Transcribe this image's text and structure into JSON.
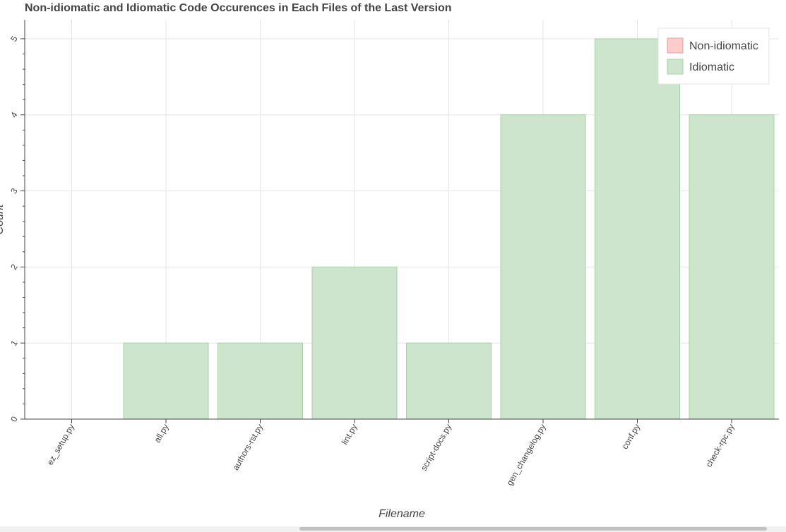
{
  "chart_data": {
    "type": "bar",
    "title": "Non-idiomatic and Idiomatic Code Occurences in Each Files of the Last Version",
    "xlabel": "Filename",
    "ylabel": "Count",
    "categories": [
      "ez_setup.py",
      "all.py",
      "authors-rst.py",
      "lint.py",
      "script-docs.py",
      "gen_changelog.py",
      "conf.py",
      "check-rpc.py"
    ],
    "series": [
      {
        "name": "Non-idiomatic",
        "color": "#ffcccc",
        "values": [
          0,
          0,
          0,
          0,
          0,
          0,
          0,
          0
        ]
      },
      {
        "name": "Idiomatic",
        "color": "#cce5cc",
        "values": [
          0,
          1,
          1,
          2,
          1,
          4,
          5,
          4
        ]
      }
    ],
    "ylim": [
      0,
      5.25
    ],
    "yticks": [
      0,
      1,
      2,
      3,
      4,
      5
    ],
    "grid": true,
    "legend": "top-right"
  }
}
